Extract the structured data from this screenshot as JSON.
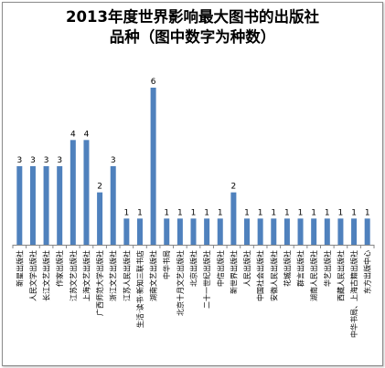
{
  "chart_data": {
    "type": "bar",
    "title_lines": [
      "2013年度世界影响最大图书的出版社",
      "品种（图中数字为种数）"
    ],
    "xlabel": "",
    "ylabel": "",
    "ylim": [
      0,
      6
    ],
    "grid": false,
    "legend": "none",
    "bar_color": "#4f81bd",
    "categories": [
      "新星出版社",
      "人民文学出版社",
      "长江文艺出版社",
      "作家出版社",
      "江苏文艺出版社",
      "上海文艺出版社",
      "广西师范大学出版社",
      "浙江文艺出版社",
      "江苏人民出版社",
      "生活·读书·新知三联书店",
      "湖南文艺出版社",
      "中华书局",
      "北京十月文艺出版社",
      "北京出版社",
      "二十一世纪出版社",
      "中信出版社",
      "新世界出版社",
      "人民出版社",
      "中国社会出版社",
      "安徽人民出版社",
      "花城出版社",
      "群言出版社",
      "湖南人民出版社",
      "华艺出版社",
      "西藏人民出版社",
      "中华书局、上海古籍出版社",
      "东方出版中心"
    ],
    "values": [
      3,
      3,
      3,
      3,
      4,
      4,
      2,
      3,
      1,
      1,
      6,
      1,
      1,
      1,
      1,
      1,
      2,
      1,
      1,
      1,
      1,
      1,
      1,
      1,
      1,
      1,
      1
    ]
  }
}
